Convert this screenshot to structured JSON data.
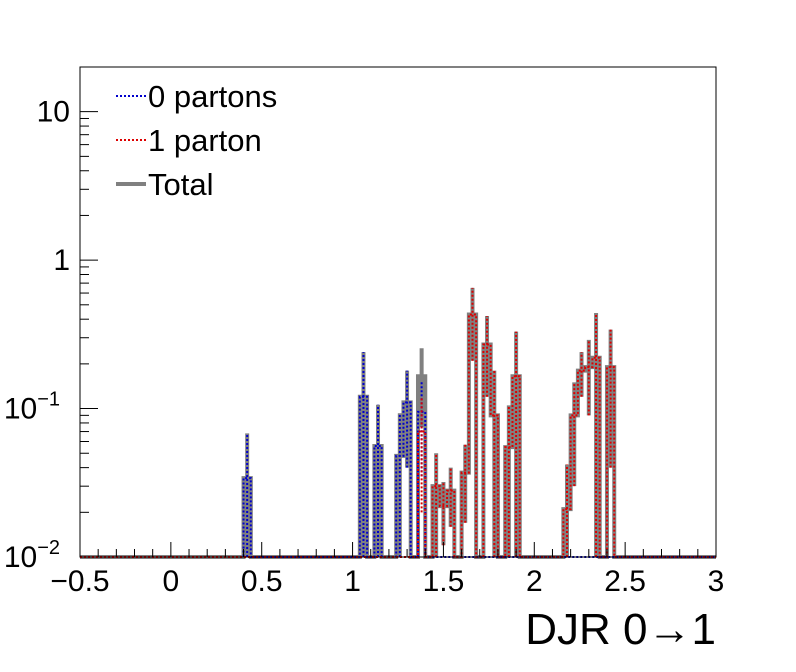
{
  "chart_data": {
    "type": "histogram",
    "title": "",
    "xlabel": "DJR 0→1",
    "ylabel": "",
    "xlim": [
      -0.5,
      3
    ],
    "ylim": [
      0.01,
      20
    ],
    "yscale": "log",
    "bin_width": 0.04,
    "grid": false,
    "legend_position": "top-left",
    "x_ticks": [
      {
        "value": -0.5,
        "label": "−0.5"
      },
      {
        "value": 0,
        "label": "0"
      },
      {
        "value": 0.5,
        "label": "0.5"
      },
      {
        "value": 1,
        "label": "1"
      },
      {
        "value": 1.5,
        "label": "1.5"
      },
      {
        "value": 2,
        "label": "2"
      },
      {
        "value": 2.5,
        "label": "2.5"
      },
      {
        "value": 3,
        "label": "3"
      }
    ],
    "y_ticks": [
      {
        "value": 0.01,
        "base": "10",
        "exp": "−2"
      },
      {
        "value": 0.1,
        "base": "10",
        "exp": "−1"
      },
      {
        "value": 1,
        "base": "1",
        "exp": ""
      },
      {
        "value": 10,
        "base": "10",
        "exp": ""
      }
    ],
    "series": [
      {
        "name": "Total",
        "color": "#808080",
        "style": "solid",
        "bins": [
          {
            "x": 0.4,
            "y": 0.034,
            "err": 0.034
          },
          {
            "x": 1.04,
            "y": 0.12,
            "err": 0.12
          },
          {
            "x": 1.12,
            "y": 0.056,
            "err": 0.05
          },
          {
            "x": 1.24,
            "y": 0.048,
            "err": 0.045
          },
          {
            "x": 1.28,
            "y": 0.11,
            "err": 0.07
          },
          {
            "x": 1.36,
            "y": 0.165,
            "err": 0.09
          },
          {
            "x": 1.44,
            "y": 0.03,
            "err": 0.02
          },
          {
            "x": 1.48,
            "y": 0.022,
            "err": 0.01
          },
          {
            "x": 1.52,
            "y": 0.028,
            "err": 0.012
          },
          {
            "x": 1.6,
            "y": 0.037,
            "err": 0.02
          },
          {
            "x": 1.64,
            "y": 0.43,
            "err": 0.22
          },
          {
            "x": 1.72,
            "y": 0.27,
            "err": 0.15
          },
          {
            "x": 1.76,
            "y": 0.09,
            "err": 0.09
          },
          {
            "x": 1.84,
            "y": 0.055,
            "err": 0.05
          },
          {
            "x": 1.88,
            "y": 0.165,
            "err": 0.165
          },
          {
            "x": 2.16,
            "y": 0.021,
            "err": 0.021
          },
          {
            "x": 2.2,
            "y": 0.09,
            "err": 0.06
          },
          {
            "x": 2.24,
            "y": 0.18,
            "err": 0.06
          },
          {
            "x": 2.28,
            "y": 0.19,
            "err": 0.1
          },
          {
            "x": 2.32,
            "y": 0.22,
            "err": 0.22
          },
          {
            "x": 2.4,
            "y": 0.19,
            "err": 0.15
          }
        ]
      },
      {
        "name": "0 partons",
        "color": "#0000cc",
        "style": "dotted",
        "bins": [
          {
            "x": 0.4,
            "y": 0.034,
            "err": 0.034
          },
          {
            "x": 1.04,
            "y": 0.12,
            "err": 0.12
          },
          {
            "x": 1.12,
            "y": 0.056,
            "err": 0.05
          },
          {
            "x": 1.24,
            "y": 0.048,
            "err": 0.045
          },
          {
            "x": 1.28,
            "y": 0.11,
            "err": 0.07
          },
          {
            "x": 1.36,
            "y": 0.095,
            "err": 0.06
          }
        ]
      },
      {
        "name": "1 parton",
        "color": "#dd0000",
        "style": "dotted",
        "bins": [
          {
            "x": 1.36,
            "y": 0.07,
            "err": 0.05
          },
          {
            "x": 1.44,
            "y": 0.03,
            "err": 0.02
          },
          {
            "x": 1.48,
            "y": 0.022,
            "err": 0.01
          },
          {
            "x": 1.52,
            "y": 0.028,
            "err": 0.012
          },
          {
            "x": 1.6,
            "y": 0.037,
            "err": 0.02
          },
          {
            "x": 1.64,
            "y": 0.43,
            "err": 0.22
          },
          {
            "x": 1.72,
            "y": 0.27,
            "err": 0.15
          },
          {
            "x": 1.76,
            "y": 0.09,
            "err": 0.09
          },
          {
            "x": 1.84,
            "y": 0.055,
            "err": 0.05
          },
          {
            "x": 1.88,
            "y": 0.165,
            "err": 0.165
          },
          {
            "x": 2.16,
            "y": 0.021,
            "err": 0.021
          },
          {
            "x": 2.2,
            "y": 0.09,
            "err": 0.06
          },
          {
            "x": 2.24,
            "y": 0.18,
            "err": 0.06
          },
          {
            "x": 2.28,
            "y": 0.19,
            "err": 0.1
          },
          {
            "x": 2.32,
            "y": 0.22,
            "err": 0.22
          },
          {
            "x": 2.4,
            "y": 0.19,
            "err": 0.15
          }
        ]
      }
    ],
    "legend": [
      {
        "label": "0 partons",
        "series": "0 partons"
      },
      {
        "label": "1 parton",
        "series": "1 parton"
      },
      {
        "label": "Total",
        "series": "Total"
      }
    ]
  }
}
